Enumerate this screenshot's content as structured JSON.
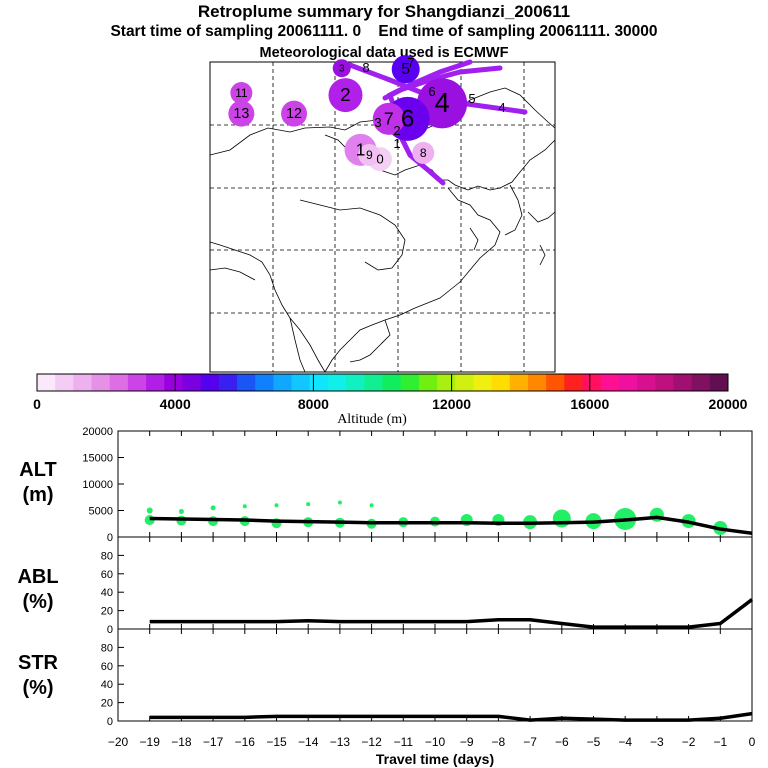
{
  "header": {
    "title": "Retroplume summary for Shangdianzi_200611",
    "subtitle_start": "Start time of sampling 20061111.     0",
    "subtitle_end": "End time of sampling 20061111. 30000",
    "met_data": "Meteorological data used is ECMWF"
  },
  "colorbar": {
    "label": "Altitude (m)",
    "ticks": [
      "0",
      "4000",
      "8000",
      "12000",
      "16000",
      "20000"
    ],
    "range": [
      0,
      20000
    ],
    "colors": [
      "#fbe8fb",
      "#f5ccf5",
      "#eeb0ee",
      "#e690e6",
      "#dd6ee4",
      "#cc44e8",
      "#b01ee8",
      "#9900dd",
      "#7a00e0",
      "#5500ee",
      "#3a20f0",
      "#1a55f5",
      "#1080ff",
      "#10a8ff",
      "#10c8ff",
      "#10e4ff",
      "#10f0e8",
      "#10f0c0",
      "#10f090",
      "#10ee60",
      "#30ee30",
      "#70f010",
      "#a8f010",
      "#d0f010",
      "#f0f010",
      "#ffdd00",
      "#ffb000",
      "#ff8800",
      "#ff5500",
      "#ff2020",
      "#ff1060",
      "#ff1090",
      "#f010a0",
      "#d81090",
      "#c01080",
      "#a01070",
      "#801060",
      "#601050"
    ]
  },
  "map": {
    "clusters": [
      {
        "label": "0",
        "lon": 117.1,
        "lat": 40.6,
        "alt_m": 300,
        "color": "#f5d0f5",
        "size": 0.35
      },
      {
        "label": "1",
        "lon": 114.0,
        "lat": 41.5,
        "alt_m": 1500,
        "color": "#e080ee",
        "size": 0.55
      },
      {
        "label": "2",
        "lon": 111.6,
        "lat": 46.8,
        "alt_m": 2500,
        "color": "#b020e8",
        "size": 0.6
      },
      {
        "label": "3",
        "lon": 111.0,
        "lat": 49.4,
        "alt_m": 3000,
        "color": "#9a10e0",
        "size": 0.2
      },
      {
        "label": "4",
        "lon": 127.0,
        "lat": 46.0,
        "alt_m": 3500,
        "color": "#9a10e0",
        "size": 1.0
      },
      {
        "label": "5",
        "lon": 121.2,
        "lat": 49.3,
        "alt_m": 3800,
        "color": "#5a00f0",
        "size": 0.45
      },
      {
        "label": "6",
        "lon": 121.5,
        "lat": 44.5,
        "alt_m": 4200,
        "color": "#6a00ee",
        "size": 0.85
      },
      {
        "label": "7",
        "lon": 118.5,
        "lat": 44.5,
        "alt_m": 3200,
        "color": "#c030e8",
        "size": 0.55
      },
      {
        "label": "8",
        "lon": 124.0,
        "lat": 41.2,
        "alt_m": 1000,
        "color": "#eeb0ee",
        "size": 0.3
      },
      {
        "label": "9",
        "lon": 115.4,
        "lat": 41.0,
        "alt_m": 800,
        "color": "#f0c0f0",
        "size": 0.3
      },
      {
        "label": "11",
        "lon": 95.0,
        "lat": 47.0,
        "alt_m": 2000,
        "color": "#cc44e8",
        "size": 0.3
      },
      {
        "label": "12",
        "lon": 103.4,
        "lat": 45.0,
        "alt_m": 2000,
        "color": "#cc44e8",
        "size": 0.4
      },
      {
        "label": "13",
        "lon": 95.0,
        "lat": 45.0,
        "alt_m": 2000,
        "color": "#cc44e8",
        "size": 0.4
      }
    ],
    "text_labels": [
      "8",
      "7",
      "6",
      "5",
      "4",
      "3",
      "2",
      "1"
    ]
  },
  "chart_data": [
    {
      "type": "line",
      "panel": "ALT",
      "title": "ALT",
      "ylabel": "(m)",
      "xlabel": "Travel time (days)",
      "ylim": [
        0,
        20000
      ],
      "yticks": [
        "0",
        "5000",
        "10000",
        "15000",
        "20000"
      ],
      "xlim": [
        -20,
        0
      ],
      "xticks": [
        "−20",
        "−19",
        "−18",
        "−17",
        "−16",
        "−15",
        "−14",
        "−13",
        "−12",
        "−11",
        "−10",
        "−9",
        "−8",
        "−7",
        "−6",
        "−5",
        "−4",
        "−3",
        "−2",
        "−1",
        "0"
      ],
      "x": [
        -19,
        -18,
        -17,
        -16,
        -15,
        -14,
        -13,
        -12,
        -11,
        -10,
        -9,
        -8,
        -7,
        -6,
        -5,
        -4,
        -3,
        -2,
        -1,
        0
      ],
      "y": [
        3500,
        3400,
        3300,
        3200,
        3000,
        2900,
        2800,
        2700,
        2700,
        2700,
        2700,
        2600,
        2600,
        2700,
        2800,
        3200,
        3700,
        2800,
        1500,
        700
      ],
      "scatter": [
        {
          "x": -19,
          "y": 3200,
          "s": 5
        },
        {
          "x": -19,
          "y": 5000,
          "s": 3
        },
        {
          "x": -18,
          "y": 3100,
          "s": 5
        },
        {
          "x": -18,
          "y": 4800,
          "s": 2.5
        },
        {
          "x": -17,
          "y": 3000,
          "s": 5
        },
        {
          "x": -17,
          "y": 5500,
          "s": 2.5
        },
        {
          "x": -16,
          "y": 3000,
          "s": 5
        },
        {
          "x": -16,
          "y": 5800,
          "s": 2
        },
        {
          "x": -15,
          "y": 2600,
          "s": 5
        },
        {
          "x": -15,
          "y": 6000,
          "s": 2
        },
        {
          "x": -14,
          "y": 2800,
          "s": 5
        },
        {
          "x": -14,
          "y": 6200,
          "s": 2
        },
        {
          "x": -13,
          "y": 2700,
          "s": 5
        },
        {
          "x": -13,
          "y": 6500,
          "s": 2
        },
        {
          "x": -12,
          "y": 2500,
          "s": 5
        },
        {
          "x": -12,
          "y": 6000,
          "s": 2
        },
        {
          "x": -11,
          "y": 2800,
          "s": 5
        },
        {
          "x": -10,
          "y": 2900,
          "s": 5
        },
        {
          "x": -9,
          "y": 3200,
          "s": 6
        },
        {
          "x": -8,
          "y": 3200,
          "s": 6
        },
        {
          "x": -7,
          "y": 2800,
          "s": 7
        },
        {
          "x": -6,
          "y": 3500,
          "s": 9
        },
        {
          "x": -5,
          "y": 3000,
          "s": 8
        },
        {
          "x": -4,
          "y": 3400,
          "s": 11
        },
        {
          "x": -3,
          "y": 4200,
          "s": 7
        },
        {
          "x": -2,
          "y": 3000,
          "s": 7
        },
        {
          "x": -1,
          "y": 1700,
          "s": 7
        }
      ]
    },
    {
      "type": "line",
      "panel": "ABL",
      "title": "ABL",
      "ylabel": "(%)",
      "ylim": [
        0,
        100
      ],
      "yticks": [
        "0",
        "20",
        "40",
        "60",
        "80"
      ],
      "x": [
        -19,
        -18,
        -17,
        -16,
        -15,
        -14,
        -13,
        -12,
        -11,
        -10,
        -9,
        -8,
        -7,
        -6,
        -5,
        -4,
        -3,
        -2,
        -1,
        0
      ],
      "y": [
        8,
        8,
        8,
        8,
        8,
        9,
        8,
        8,
        8,
        8,
        8,
        10,
        10,
        6,
        2,
        2,
        2,
        2,
        6,
        32
      ]
    },
    {
      "type": "line",
      "panel": "STR",
      "title": "STR",
      "ylabel": "(%)",
      "ylim": [
        0,
        100
      ],
      "yticks": [
        "0",
        "20",
        "40",
        "60",
        "80"
      ],
      "x": [
        -19,
        -18,
        -17,
        -16,
        -15,
        -14,
        -13,
        -12,
        -11,
        -10,
        -9,
        -8,
        -7,
        -6,
        -5,
        -4,
        -3,
        -2,
        -1,
        0
      ],
      "y": [
        4,
        4,
        4,
        4,
        5,
        5,
        5,
        5,
        5,
        5,
        5,
        5,
        1,
        3,
        2,
        1,
        1,
        1,
        3,
        8
      ]
    }
  ]
}
